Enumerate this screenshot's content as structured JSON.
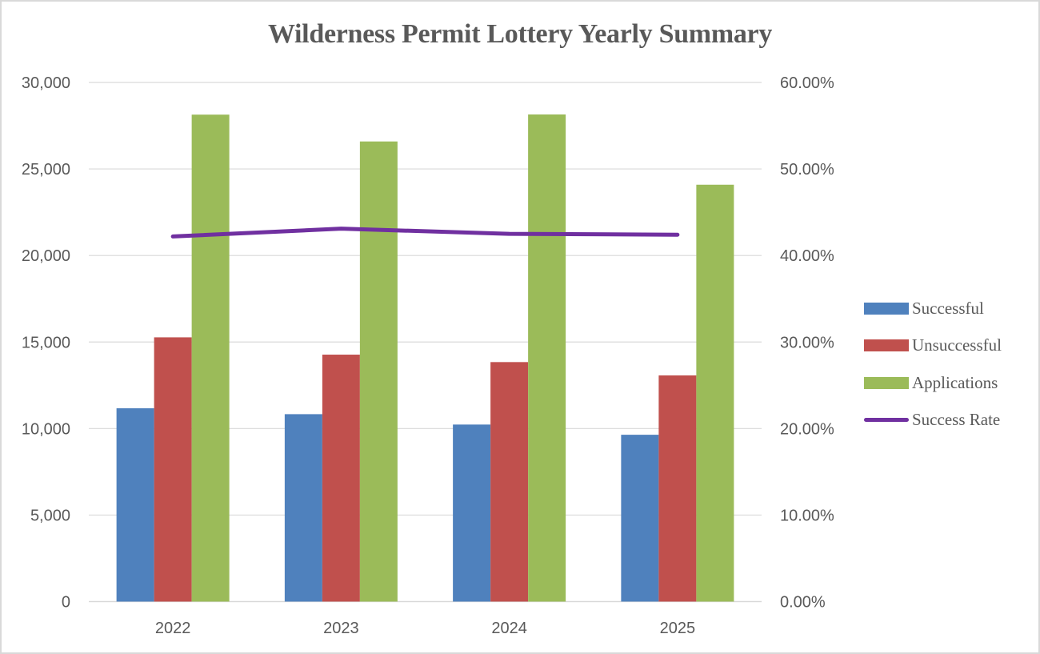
{
  "chart_data": {
    "type": "bar",
    "title": "Wilderness Permit Lottery Yearly Summary",
    "categories": [
      "2022",
      "2023",
      "2024",
      "2025"
    ],
    "series": [
      {
        "name": "Successful",
        "type": "bar",
        "axis": "left",
        "color": "#4f81bd",
        "values": [
          11170,
          10830,
          10230,
          9640
        ]
      },
      {
        "name": "Unsuccessful",
        "type": "bar",
        "axis": "left",
        "color": "#c0504d",
        "values": [
          15270,
          14270,
          13840,
          13070
        ]
      },
      {
        "name": "Applications",
        "type": "bar",
        "axis": "left",
        "color": "#9bbb59",
        "values": [
          28140,
          26590,
          28150,
          24090
        ]
      },
      {
        "name": "Success Rate",
        "type": "line",
        "axis": "right",
        "color": "#7030a0",
        "values": [
          0.422,
          0.431,
          0.425,
          0.424
        ]
      }
    ],
    "xlabel": "",
    "ylabel": "",
    "ylim": [
      0,
      30000
    ],
    "y_ticks": [
      "0",
      "5,000",
      "10,000",
      "15,000",
      "20,000",
      "25,000",
      "30,000"
    ],
    "y2lim": [
      0,
      0.6
    ],
    "y2_ticks": [
      "0.00%",
      "10.00%",
      "20.00%",
      "30.00%",
      "40.00%",
      "50.00%",
      "60.00%"
    ],
    "grid": true,
    "legend_position": "right"
  },
  "legend": {
    "items": [
      {
        "label": "Successful",
        "color": "#4f81bd",
        "kind": "box"
      },
      {
        "label": "Unsuccessful",
        "color": "#c0504d",
        "kind": "box"
      },
      {
        "label": "Applications",
        "color": "#9bbb59",
        "kind": "box"
      },
      {
        "label": "Success Rate",
        "color": "#7030a0",
        "kind": "line"
      }
    ]
  }
}
